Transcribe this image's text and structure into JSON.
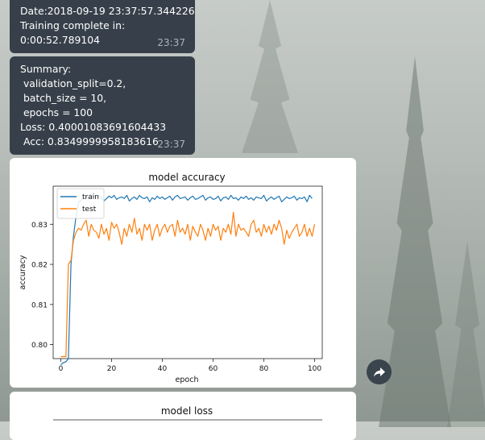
{
  "messages": [
    {
      "lines": [
        "Date:2018-09-19 23:37:57.344226",
        "Training complete in:",
        "0:00:52.789104"
      ],
      "time": "23:37"
    },
    {
      "lines": [
        "Summary:",
        " validation_split=0.2,",
        " batch_size = 10,",
        " epochs = 100",
        "Loss: 0.40001083691604433",
        " Acc: 0.8349999958183616"
      ],
      "time": "23:37"
    }
  ],
  "chart_data": [
    {
      "type": "line",
      "title": "model accuracy",
      "xlabel": "epoch",
      "ylabel": "accuracy",
      "xlim": [
        -3,
        103
      ],
      "ylim": [
        0.7965,
        0.8395
      ],
      "xticks": [
        0,
        20,
        40,
        60,
        80,
        100
      ],
      "yticks": [
        0.8,
        0.81,
        0.82,
        0.83
      ],
      "ytick_labels": [
        "0.80",
        "0.81",
        "0.82",
        "0.83"
      ],
      "legend": "top-left",
      "series": [
        {
          "name": "train",
          "color": "#1f77b4",
          "values": [
            0.795,
            0.7955,
            0.7957,
            0.7965,
            0.82,
            0.827,
            0.832,
            0.8355,
            0.836,
            0.8365,
            0.837,
            0.8365,
            0.8375,
            0.8368,
            0.837,
            0.8372,
            0.8366,
            0.8358,
            0.8364,
            0.837,
            0.8366,
            0.8372,
            0.8362,
            0.8366,
            0.8368,
            0.8364,
            0.8372,
            0.8358,
            0.8364,
            0.8368,
            0.8362,
            0.8372,
            0.8366,
            0.8364,
            0.8368,
            0.8356,
            0.8366,
            0.8362,
            0.837,
            0.8364,
            0.8368,
            0.8362,
            0.8366,
            0.837,
            0.836,
            0.8368,
            0.8372,
            0.8364,
            0.8366,
            0.8368,
            0.836,
            0.8366,
            0.837,
            0.8362,
            0.8364,
            0.8368,
            0.8372,
            0.836,
            0.8366,
            0.8368,
            0.8362,
            0.8364,
            0.837,
            0.8358,
            0.8366,
            0.8368,
            0.8362,
            0.8372,
            0.8364,
            0.8366,
            0.836,
            0.8368,
            0.8364,
            0.837,
            0.8362,
            0.8366,
            0.836,
            0.8368,
            0.8366,
            0.8364,
            0.8372,
            0.8358,
            0.8364,
            0.8368,
            0.8362,
            0.8366,
            0.837,
            0.8356,
            0.8362,
            0.8368,
            0.8364,
            0.8366,
            0.837,
            0.836,
            0.8366,
            0.8364,
            0.8368,
            0.8356,
            0.8372,
            0.8364
          ]
        },
        {
          "name": "test",
          "color": "#ff7f0e",
          "values": [
            0.797,
            0.797,
            0.797,
            0.82,
            0.821,
            0.826,
            0.828,
            0.829,
            0.8285,
            0.83,
            0.831,
            0.827,
            0.83,
            0.8285,
            0.828,
            0.8265,
            0.83,
            0.8275,
            0.829,
            0.826,
            0.8305,
            0.829,
            0.83,
            0.828,
            0.825,
            0.829,
            0.827,
            0.83,
            0.828,
            0.8315,
            0.8275,
            0.829,
            0.826,
            0.83,
            0.8285,
            0.83,
            0.826,
            0.8285,
            0.83,
            0.827,
            0.829,
            0.83,
            0.828,
            0.8295,
            0.83,
            0.827,
            0.831,
            0.828,
            0.829,
            0.8275,
            0.83,
            0.826,
            0.8295,
            0.828,
            0.827,
            0.83,
            0.8285,
            0.826,
            0.829,
            0.827,
            0.83,
            0.8285,
            0.8295,
            0.826,
            0.829,
            0.828,
            0.83,
            0.8275,
            0.833,
            0.827,
            0.83,
            0.8285,
            0.829,
            0.828,
            0.827,
            0.83,
            0.831,
            0.828,
            0.829,
            0.827,
            0.83,
            0.828,
            0.8295,
            0.8275,
            0.83,
            0.8285,
            0.831,
            0.829,
            0.825,
            0.8285,
            0.8265,
            0.828,
            0.829,
            0.83,
            0.827,
            0.828,
            0.83,
            0.827,
            0.829,
            0.827,
            0.83
          ]
        }
      ]
    },
    {
      "type": "line",
      "title": "model loss"
    }
  ]
}
